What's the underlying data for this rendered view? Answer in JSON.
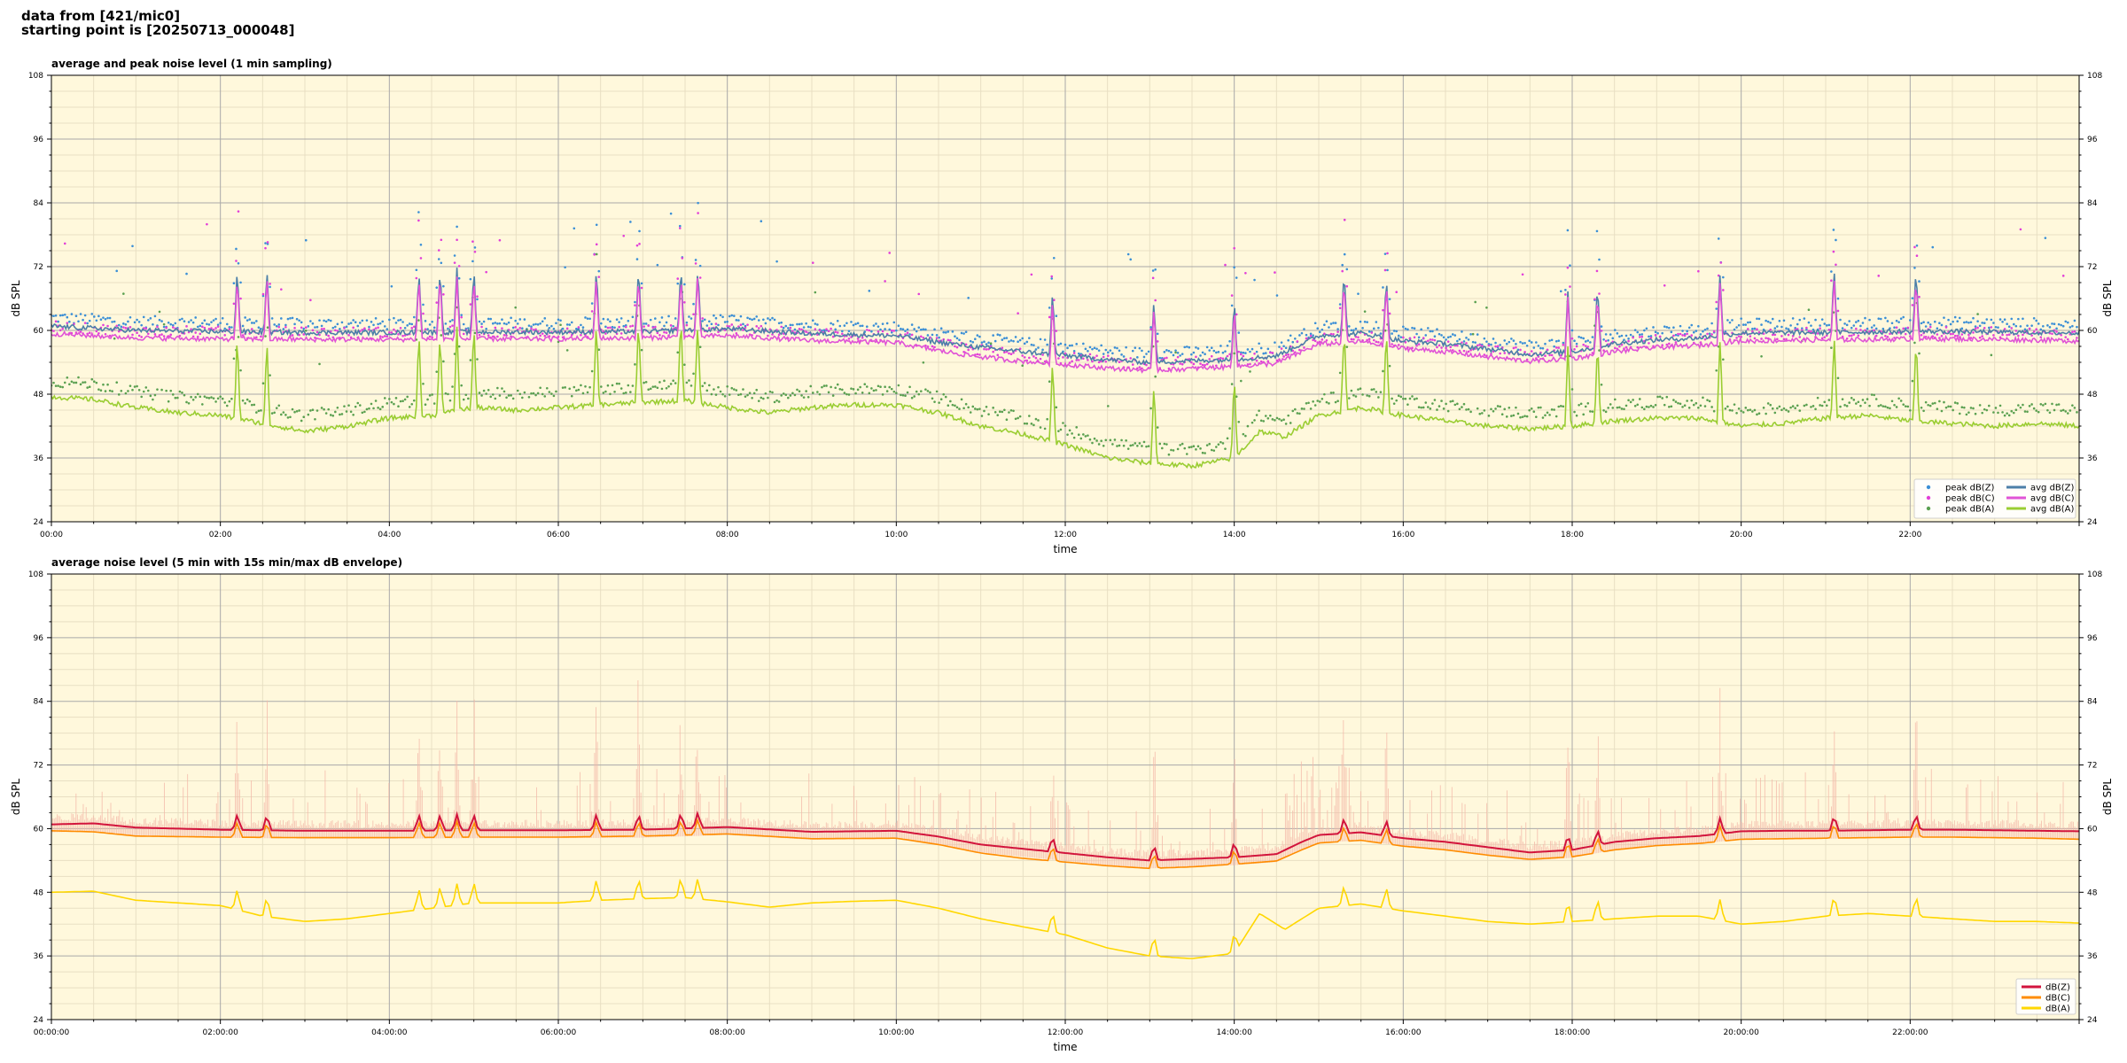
{
  "header": {
    "line1": "data from [421/mic0]",
    "line2": "starting point is [20250713_000048]"
  },
  "colors": {
    "plot_bg": "#fff8dc",
    "grid_major": "#a9a9a9",
    "grid_minor": "#e8dfc3",
    "peak_z": "#3b8fd6",
    "peak_c": "#e23fd8",
    "peak_a": "#5aa050",
    "avg_z": "#4c7fa8",
    "avg_c": "#e053d6",
    "avg_a": "#9acd32",
    "env_band": "#f4b8a8",
    "db_z": "#d2143c",
    "db_c": "#ff8c00",
    "db_a": "#ffd700"
  },
  "chart_data": [
    {
      "type": "line",
      "title": "average and peak noise level (1 min sampling)",
      "xlabel": "time",
      "ylabel": "dB SPL",
      "xlim": [
        0,
        24
      ],
      "ylim": [
        24,
        108
      ],
      "xticks": [
        "00:00",
        "02:00",
        "04:00",
        "06:00",
        "08:00",
        "10:00",
        "12:00",
        "14:00",
        "16:00",
        "18:00",
        "20:00",
        "22:00"
      ],
      "yticks": [
        "24",
        "36",
        "48",
        "60",
        "72",
        "84",
        "96",
        "108"
      ],
      "grid": true,
      "legend": "lower-right",
      "legend_entries": [
        "peak dB(Z)",
        "peak dB(C)",
        "peak dB(A)",
        "avg dB(Z)",
        "avg dB(C)",
        "avg dB(A)"
      ],
      "series": [
        {
          "name": "avg dB(Z)",
          "kind": "line",
          "x": [
            0,
            1,
            2,
            3,
            4,
            5,
            6,
            7,
            8,
            9,
            10,
            10.5,
            11,
            11.5,
            12,
            12.5,
            13,
            13.5,
            14,
            14.5,
            14.8,
            15,
            15.5,
            16,
            16.5,
            17,
            17.5,
            18,
            18.5,
            19,
            19.5,
            20,
            20.5,
            21,
            21.5,
            22,
            22.5,
            23,
            23.5,
            24
          ],
          "y": [
            60.8,
            60.0,
            59.8,
            59.6,
            59.6,
            59.7,
            59.7,
            59.8,
            60.3,
            59.4,
            59.0,
            57.8,
            56.8,
            56.0,
            55.3,
            54.5,
            54.0,
            54.3,
            54.5,
            55.2,
            57.5,
            59.0,
            59.5,
            58.0,
            57.5,
            56.5,
            55.5,
            56.0,
            57.5,
            58.2,
            58.6,
            59.5,
            59.6,
            59.6,
            59.7,
            59.8,
            59.8,
            59.7,
            59.6,
            59.5
          ]
        },
        {
          "name": "avg dB(C)",
          "kind": "line",
          "x": [
            0,
            1,
            2,
            3,
            4,
            5,
            6,
            7,
            8,
            9,
            10,
            10.5,
            11,
            11.5,
            12,
            12.5,
            13,
            13.5,
            14,
            14.5,
            14.8,
            15,
            15.5,
            16,
            16.5,
            17,
            17.5,
            18,
            18.5,
            19,
            19.5,
            20,
            20.5,
            21,
            21.5,
            22,
            22.5,
            23,
            23.5,
            24
          ],
          "y": [
            59.4,
            58.6,
            58.4,
            58.3,
            58.3,
            58.4,
            58.4,
            58.6,
            59.0,
            58.1,
            57.7,
            56.2,
            55.0,
            54.2,
            53.6,
            52.9,
            52.5,
            52.8,
            53.2,
            53.8,
            56.0,
            57.4,
            57.9,
            56.6,
            56.0,
            55.0,
            54.2,
            54.7,
            56.0,
            56.8,
            57.2,
            58.0,
            58.1,
            58.2,
            58.3,
            58.4,
            58.4,
            58.3,
            58.2,
            58.0
          ]
        },
        {
          "name": "avg dB(A)",
          "kind": "line",
          "x": [
            0,
            0.5,
            1,
            1.5,
            2,
            2.5,
            3,
            3.5,
            4,
            4.5,
            5,
            5.5,
            6,
            6.5,
            7,
            7.5,
            8,
            8.5,
            9,
            9.5,
            10,
            10.5,
            11,
            11.5,
            12,
            12.5,
            13,
            13.5,
            14,
            14.3,
            14.6,
            15,
            15.5,
            16,
            16.5,
            17,
            17.5,
            18,
            18.5,
            19,
            19.5,
            20,
            20.5,
            21,
            21.5,
            22,
            22.5,
            23,
            23.5,
            24
          ],
          "y": [
            47.5,
            47.0,
            45.5,
            44.5,
            44.0,
            42.5,
            41.0,
            42.0,
            43.5,
            44.0,
            45.5,
            45.0,
            45.5,
            46.0,
            46.5,
            46.8,
            45.5,
            44.5,
            45.5,
            46.0,
            46.0,
            44.5,
            42.0,
            40.5,
            38.5,
            36.0,
            35.0,
            34.5,
            36.0,
            41.0,
            40.0,
            44.0,
            45.5,
            44.0,
            43.0,
            42.0,
            41.5,
            42.0,
            43.0,
            43.5,
            43.5,
            42.0,
            42.5,
            43.5,
            44.0,
            43.0,
            42.5,
            42.0,
            42.5,
            42.0
          ]
        },
        {
          "name": "peak dB(Z)",
          "kind": "scatter",
          "offset": 1.2
        },
        {
          "name": "peak dB(C)",
          "kind": "scatter",
          "offset": 0.8
        },
        {
          "name": "peak dB(A)",
          "kind": "scatter",
          "offset": 2.5
        }
      ],
      "spikes_hours": [
        2.2,
        2.55,
        4.35,
        4.6,
        4.8,
        5.0,
        6.45,
        6.95,
        7.45,
        7.65,
        11.85,
        13.05,
        14.0,
        15.3,
        15.8,
        17.95,
        18.3,
        19.75,
        21.1,
        22.07
      ]
    },
    {
      "type": "line",
      "title": "average noise level (5 min with 15s min/max dB envelope)",
      "xlabel": "time",
      "ylabel": "dB SPL",
      "xlim": [
        0,
        24
      ],
      "ylim": [
        24,
        108
      ],
      "xticks": [
        "00:00:00",
        "02:00:00",
        "04:00:00",
        "06:00:00",
        "08:00:00",
        "10:00:00",
        "12:00:00",
        "14:00:00",
        "16:00:00",
        "18:00:00",
        "20:00:00",
        "22:00:00"
      ],
      "yticks": [
        "24",
        "36",
        "48",
        "60",
        "72",
        "84",
        "96",
        "108"
      ],
      "grid": true,
      "legend": "lower-right",
      "legend_entries": [
        "dB(Z)",
        "dB(C)",
        "dB(A)"
      ],
      "series": [
        {
          "name": "dB(Z)",
          "kind": "line",
          "x": [
            0,
            0.5,
            1,
            2,
            3,
            4,
            5,
            6,
            7,
            8,
            9,
            10,
            10.5,
            11,
            11.5,
            12,
            12.5,
            13,
            13.5,
            14,
            14.5,
            14.8,
            15,
            15.5,
            16,
            16.5,
            17,
            17.5,
            18,
            18.5,
            19,
            19.5,
            20,
            20.5,
            21,
            21.5,
            22,
            22.5,
            23,
            23.5,
            24
          ],
          "y": [
            60.8,
            61.0,
            60.2,
            59.8,
            59.6,
            59.6,
            59.7,
            59.7,
            59.8,
            60.3,
            59.4,
            59.6,
            58.5,
            57.0,
            56.2,
            55.4,
            54.6,
            54.0,
            54.3,
            54.6,
            55.2,
            57.5,
            58.8,
            59.3,
            58.2,
            57.5,
            56.5,
            55.5,
            56.0,
            57.5,
            58.2,
            58.6,
            59.5,
            59.6,
            59.6,
            59.7,
            59.8,
            59.8,
            59.7,
            59.6,
            59.5
          ]
        },
        {
          "name": "dB(C)",
          "kind": "line",
          "x": [
            0,
            0.5,
            1,
            2,
            3,
            4,
            5,
            6,
            7,
            8,
            9,
            10,
            10.5,
            11,
            11.5,
            12,
            12.5,
            13,
            13.5,
            14,
            14.5,
            14.8,
            15,
            15.5,
            16,
            16.5,
            17,
            17.5,
            18,
            18.5,
            19,
            19.5,
            20,
            20.5,
            21,
            21.5,
            22,
            22.5,
            23,
            23.5,
            24
          ],
          "y": [
            59.6,
            59.4,
            58.6,
            58.4,
            58.3,
            58.3,
            58.4,
            58.4,
            58.6,
            59.0,
            58.1,
            58.2,
            57.0,
            55.4,
            54.4,
            53.7,
            53.0,
            52.5,
            52.8,
            53.3,
            53.9,
            56.0,
            57.3,
            57.8,
            56.7,
            56.0,
            55.0,
            54.2,
            54.7,
            56.0,
            56.8,
            57.2,
            58.0,
            58.1,
            58.2,
            58.3,
            58.4,
            58.4,
            58.3,
            58.2,
            58.0
          ]
        },
        {
          "name": "dB(A)",
          "kind": "line",
          "x": [
            0,
            0.5,
            1,
            1.5,
            2,
            2.5,
            3,
            3.5,
            4,
            4.5,
            5,
            5.5,
            6,
            6.5,
            7,
            7.5,
            8,
            8.5,
            9,
            9.5,
            10,
            10.5,
            11,
            11.5,
            12,
            12.5,
            13,
            13.5,
            14,
            14.3,
            14.6,
            15,
            15.5,
            16,
            16.5,
            17,
            17.5,
            18,
            18.5,
            19,
            19.5,
            20,
            20.5,
            21,
            21.5,
            22,
            22.5,
            23,
            23.5,
            24
          ],
          "y": [
            48.0,
            48.2,
            46.5,
            46.0,
            45.5,
            43.5,
            42.5,
            43.0,
            44.0,
            45.0,
            46.0,
            46.0,
            46.0,
            46.5,
            46.8,
            47.0,
            46.2,
            45.2,
            46.0,
            46.3,
            46.5,
            45.0,
            43.0,
            41.5,
            40.0,
            37.5,
            36.0,
            35.5,
            36.5,
            44.0,
            41.0,
            45.0,
            45.8,
            44.5,
            43.5,
            42.5,
            42.0,
            42.5,
            43.0,
            43.5,
            43.5,
            42.0,
            42.5,
            43.5,
            44.0,
            43.5,
            43.0,
            42.5,
            42.5,
            42.2
          ]
        },
        {
          "name": "envelope",
          "kind": "band"
        }
      ],
      "spikes_hours": [
        2.2,
        2.55,
        4.35,
        4.6,
        4.8,
        5.0,
        6.45,
        6.95,
        7.45,
        7.65,
        11.85,
        13.05,
        14.0,
        15.3,
        15.8,
        17.95,
        18.3,
        19.75,
        21.1,
        22.07
      ]
    }
  ]
}
